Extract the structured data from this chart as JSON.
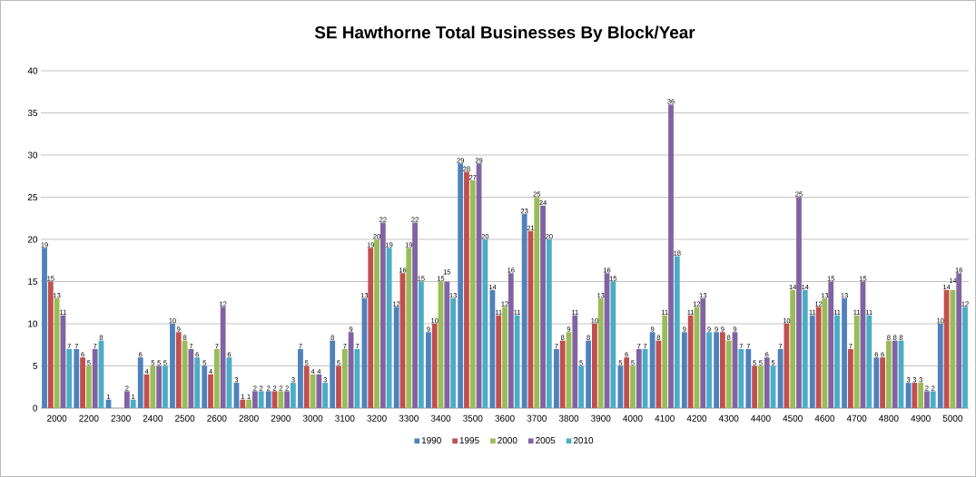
{
  "chart_data": {
    "type": "bar",
    "title": "SE Hawthorne Total Businesses By Block/Year",
    "categories": [
      "2000",
      "2200",
      "2300",
      "2400",
      "2500",
      "2600",
      "2800",
      "2900",
      "3000",
      "3100",
      "3200",
      "3300",
      "3400",
      "3500",
      "3600",
      "3700",
      "3800",
      "3900",
      "4000",
      "4100",
      "4200",
      "4300",
      "4400",
      "4500",
      "4600",
      "4700",
      "4800",
      "4900",
      "5000"
    ],
    "series": [
      {
        "name": "1990",
        "color": "#4f81bd",
        "values": [
          19,
          7,
          1,
          6,
          10,
          5,
          3,
          2,
          7,
          8,
          13,
          12,
          9,
          29,
          14,
          23,
          7,
          8,
          5,
          9,
          9,
          9,
          7,
          7,
          11,
          13,
          6,
          3,
          10
        ]
      },
      {
        "name": "1995",
        "color": "#c0504d",
        "values": [
          15,
          6,
          null,
          4,
          9,
          4,
          1,
          2,
          5,
          5,
          19,
          16,
          10,
          28,
          11,
          21,
          8,
          10,
          6,
          8,
          11,
          9,
          5,
          10,
          12,
          7,
          6,
          3,
          14
        ]
      },
      {
        "name": "2000",
        "color": "#9bbb59",
        "values": [
          13,
          5,
          null,
          5,
          8,
          7,
          1,
          2,
          4,
          7,
          20,
          19,
          15,
          27,
          12,
          25,
          9,
          13,
          5,
          11,
          12,
          8,
          5,
          14,
          13,
          11,
          8,
          3,
          14
        ]
      },
      {
        "name": "2005",
        "color": "#8064a2",
        "values": [
          11,
          7,
          2,
          5,
          7,
          12,
          2,
          2,
          4,
          9,
          22,
          22,
          15,
          29,
          16,
          24,
          11,
          16,
          7,
          36,
          13,
          9,
          6,
          25,
          15,
          15,
          8,
          2,
          16
        ]
      },
      {
        "name": "2010",
        "color": "#4bacc6",
        "values": [
          7,
          8,
          1,
          5,
          6,
          6,
          2,
          3,
          3,
          7,
          19,
          15,
          13,
          20,
          11,
          20,
          5,
          15,
          7,
          18,
          9,
          7,
          5,
          14,
          11,
          11,
          8,
          2,
          12
        ]
      }
    ],
    "ylim": [
      0,
      40
    ],
    "yticks": [
      0,
      5,
      10,
      15,
      20,
      25,
      30,
      35,
      40
    ],
    "grid": "y",
    "legend": "bottom",
    "data_labels": true
  }
}
